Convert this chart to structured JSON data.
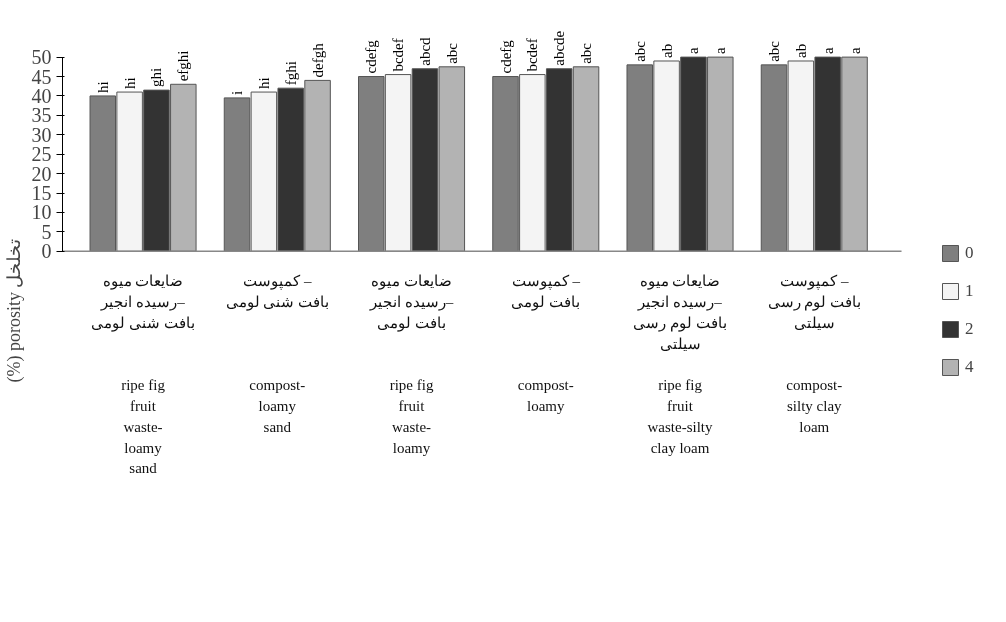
{
  "chart_data": {
    "type": "bar",
    "ylabel": "(%) porosity تخلخل",
    "categories": [
      "ضایعات میوه\nرسیده انجیر–\nبافت شنی لومی\n\n\nripe fig\nfruit\nwaste-\nloamy\nsand",
      "کمپوست –\nبافت شنی لومی\n\n\n\ncompost-\nloamy\nsand",
      "ضایعات میوه\nرسیده انجیر–\nبافت لومی\n\n\nripe fig\nfruit\nwaste-\nloamy",
      "کمپوست –\nبافت لومی\n\n\n\ncompost-\nloamy",
      "ضایعات میوه\nرسیده انجیر–\nبافت لوم رسی\nسیلتی\n\nripe fig\nfruit\nwaste-silty\nclay loam",
      "کمپوست –\nبافت لوم رسی\nسیلتی\n\n\ncompost-\nsilty clay\nloam"
    ],
    "series": [
      {
        "name": "0",
        "color": "#7f7f7f",
        "values": [
          40,
          39.5,
          45,
          45,
          48,
          48
        ],
        "value_labels": [
          "hi",
          "i",
          "cdefg",
          "cdefg",
          "abc",
          "abc"
        ]
      },
      {
        "name": "1",
        "color": "#f4f4f4",
        "values": [
          41,
          41,
          45.5,
          45.5,
          49,
          49
        ],
        "value_labels": [
          "hi",
          "hi",
          "bcdef",
          "bcdef",
          "ab",
          "ab"
        ]
      },
      {
        "name": "2",
        "color": "#333333",
        "values": [
          41.5,
          42,
          47,
          47,
          50,
          50
        ],
        "value_labels": [
          "ghi",
          "fghi",
          "abcd",
          "abcde",
          "a",
          "a"
        ]
      },
      {
        "name": "4",
        "color": "#b3b3b3",
        "values": [
          43,
          44,
          47.5,
          47.5,
          50,
          50
        ],
        "value_labels": [
          "efghi",
          "defgh",
          "abc",
          "abc",
          "a",
          "a"
        ]
      }
    ],
    "ylim": [
      0,
      50
    ],
    "yticks": [
      0,
      5,
      10,
      15,
      20,
      25,
      30,
      35,
      40,
      45,
      50
    ],
    "grid": false,
    "legend": "right"
  }
}
